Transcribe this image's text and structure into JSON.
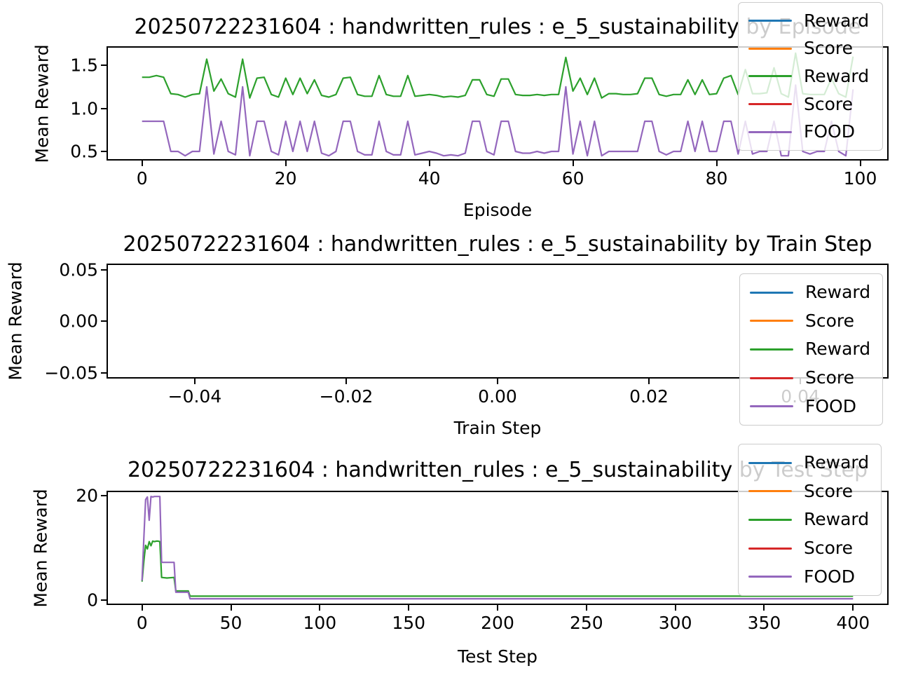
{
  "chart_data": [
    {
      "type": "line",
      "title": "20250722231604 : handwritten_rules : e_5_sustainability by Episode",
      "xlabel": "Episode",
      "ylabel": "Mean Reward",
      "xlim": [
        -4.95,
        103.95
      ],
      "ylim": [
        0.3945,
        1.7195
      ],
      "grid": false,
      "legend_loc": "upper right",
      "xticks": [
        {
          "v": 0,
          "t": "0"
        },
        {
          "v": 20,
          "t": "20"
        },
        {
          "v": 40,
          "t": "40"
        },
        {
          "v": 60,
          "t": "60"
        },
        {
          "v": 80,
          "t": "80"
        },
        {
          "v": 100,
          "t": "100"
        }
      ],
      "yticks": [
        {
          "v": 0.5,
          "t": "0.5"
        },
        {
          "v": 1.0,
          "t": "1.0"
        },
        {
          "v": 1.5,
          "t": "1.5"
        }
      ],
      "legend": [
        {
          "label": "Reward",
          "color": "#1f77b4"
        },
        {
          "label": "Score",
          "color": "#ff7f0e"
        },
        {
          "label": "Reward",
          "color": "#2ca02c"
        },
        {
          "label": "Score",
          "color": "#d62728"
        },
        {
          "label": "FOOD",
          "color": "#9467bd"
        }
      ],
      "series": [
        {
          "name": "Reward",
          "color": "#2ca02c",
          "values": [
            1.36,
            1.36,
            1.38,
            1.36,
            1.17,
            1.16,
            1.13,
            1.16,
            1.17,
            1.57,
            1.2,
            1.34,
            1.17,
            1.13,
            1.57,
            1.12,
            1.35,
            1.36,
            1.16,
            1.13,
            1.35,
            1.16,
            1.35,
            1.17,
            1.33,
            1.15,
            1.13,
            1.16,
            1.35,
            1.36,
            1.16,
            1.14,
            1.14,
            1.38,
            1.16,
            1.14,
            1.14,
            1.38,
            1.14,
            1.15,
            1.16,
            1.15,
            1.13,
            1.14,
            1.13,
            1.15,
            1.33,
            1.33,
            1.16,
            1.14,
            1.34,
            1.34,
            1.16,
            1.15,
            1.15,
            1.16,
            1.15,
            1.16,
            1.16,
            1.59,
            1.2,
            1.35,
            1.16,
            1.35,
            1.12,
            1.17,
            1.17,
            1.16,
            1.16,
            1.17,
            1.35,
            1.35,
            1.16,
            1.14,
            1.16,
            1.16,
            1.33,
            1.16,
            1.33,
            1.16,
            1.17,
            1.35,
            1.38,
            1.16,
            1.45,
            1.17,
            1.17,
            1.18,
            1.47,
            1.17,
            1.13,
            1.64,
            1.17,
            1.16,
            1.16,
            1.16,
            1.35,
            1.17,
            1.13,
            1.6
          ]
        },
        {
          "name": "FOOD",
          "color": "#9467bd",
          "values": [
            0.85,
            0.85,
            0.85,
            0.85,
            0.5,
            0.5,
            0.45,
            0.5,
            0.5,
            1.25,
            0.47,
            0.85,
            0.5,
            0.46,
            1.25,
            0.45,
            0.85,
            0.85,
            0.5,
            0.46,
            0.85,
            0.5,
            0.85,
            0.5,
            0.85,
            0.48,
            0.45,
            0.5,
            0.85,
            0.85,
            0.5,
            0.46,
            0.46,
            0.85,
            0.5,
            0.46,
            0.46,
            0.85,
            0.46,
            0.48,
            0.5,
            0.48,
            0.45,
            0.46,
            0.45,
            0.48,
            0.85,
            0.85,
            0.5,
            0.46,
            0.85,
            0.85,
            0.5,
            0.48,
            0.48,
            0.5,
            0.48,
            0.5,
            0.5,
            1.25,
            0.47,
            0.85,
            0.45,
            0.85,
            0.45,
            0.5,
            0.5,
            0.5,
            0.5,
            0.5,
            0.85,
            0.85,
            0.5,
            0.46,
            0.5,
            0.5,
            0.85,
            0.5,
            0.85,
            0.5,
            0.5,
            0.85,
            0.85,
            0.47,
            0.85,
            0.47,
            0.5,
            0.5,
            0.85,
            0.45,
            0.45,
            1.27,
            0.5,
            0.47,
            0.5,
            0.5,
            0.85,
            0.5,
            0.45,
            1.22
          ]
        }
      ]
    },
    {
      "type": "line",
      "title": "20250722231604 : handwritten_rules : e_5_sustainability by Train Step",
      "xlabel": "Train Step",
      "ylabel": "Mean Reward",
      "xlim": [
        -0.05166,
        0.05166
      ],
      "ylim": [
        -0.0556,
        0.0561
      ],
      "grid": false,
      "legend_loc": "right",
      "xticks": [
        {
          "v": -0.04,
          "t": "−0.04"
        },
        {
          "v": -0.02,
          "t": "−0.02"
        },
        {
          "v": 0.0,
          "t": "0.00"
        },
        {
          "v": 0.02,
          "t": "0.02"
        },
        {
          "v": 0.04,
          "t": "0.04"
        }
      ],
      "yticks": [
        {
          "v": -0.05,
          "t": "−0.05"
        },
        {
          "v": 0.0,
          "t": "0.00"
        },
        {
          "v": 0.05,
          "t": "0.05"
        }
      ],
      "legend": [
        {
          "label": "Reward",
          "color": "#1f77b4"
        },
        {
          "label": "Score",
          "color": "#ff7f0e"
        },
        {
          "label": "Reward",
          "color": "#2ca02c"
        },
        {
          "label": "Score",
          "color": "#d62728"
        },
        {
          "label": "FOOD",
          "color": "#9467bd"
        }
      ],
      "series": []
    },
    {
      "type": "line",
      "title": "20250722231604 : handwritten_rules : e_5_sustainability by Test Step",
      "xlabel": "Test Step",
      "ylabel": "Mean Reward",
      "xlim": [
        -20,
        420
      ],
      "ylim": [
        -1,
        21
      ],
      "grid": false,
      "legend_loc": "upper right",
      "xticks": [
        {
          "v": 0,
          "t": "0"
        },
        {
          "v": 50,
          "t": "50"
        },
        {
          "v": 100,
          "t": "100"
        },
        {
          "v": 150,
          "t": "150"
        },
        {
          "v": 200,
          "t": "200"
        },
        {
          "v": 250,
          "t": "250"
        },
        {
          "v": 300,
          "t": "300"
        },
        {
          "v": 350,
          "t": "350"
        },
        {
          "v": 400,
          "t": "400"
        }
      ],
      "yticks": [
        {
          "v": 0,
          "t": "0"
        },
        {
          "v": 20,
          "t": "20"
        }
      ],
      "legend": [
        {
          "label": "Reward",
          "color": "#1f77b4"
        },
        {
          "label": "Score",
          "color": "#ff7f0e"
        },
        {
          "label": "Reward",
          "color": "#2ca02c"
        },
        {
          "label": "Score",
          "color": "#d62728"
        },
        {
          "label": "FOOD",
          "color": "#9467bd"
        }
      ],
      "series": [
        {
          "name": "Reward",
          "color": "#2ca02c",
          "points": [
            [
              0,
              3.5
            ],
            [
              1,
              7.5
            ],
            [
              2,
              10.5
            ],
            [
              3,
              9.8
            ],
            [
              4,
              11.2
            ],
            [
              5,
              10.4
            ],
            [
              6,
              11.3
            ],
            [
              7,
              11.2
            ],
            [
              8,
              11.3
            ],
            [
              9,
              11.3
            ],
            [
              10,
              11.2
            ],
            [
              11,
              4.3
            ],
            [
              14,
              4.2
            ],
            [
              18,
              4.3
            ],
            [
              19,
              1.7
            ],
            [
              26,
              1.7
            ],
            [
              27,
              0.7
            ],
            [
              400,
              0.7
            ]
          ]
        },
        {
          "name": "FOOD",
          "color": "#9467bd",
          "points": [
            [
              0,
              3.7
            ],
            [
              1,
              12.0
            ],
            [
              2,
              19.3
            ],
            [
              3,
              19.8
            ],
            [
              4,
              15.3
            ],
            [
              5,
              19.9
            ],
            [
              6,
              19.8
            ],
            [
              7,
              19.9
            ],
            [
              9,
              19.9
            ],
            [
              10,
              19.9
            ],
            [
              11,
              7.2
            ],
            [
              18,
              7.2
            ],
            [
              19,
              1.45
            ],
            [
              26,
              1.45
            ],
            [
              27,
              0.2
            ],
            [
              400,
              0.2
            ]
          ]
        }
      ]
    }
  ]
}
